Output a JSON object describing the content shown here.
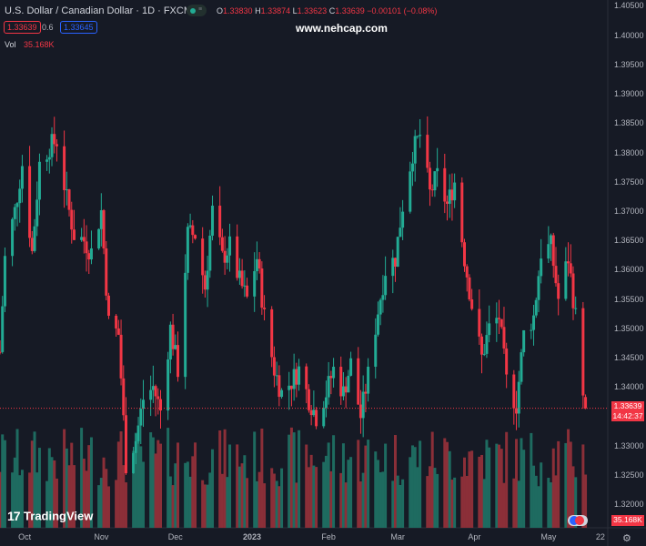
{
  "header": {
    "symbol": "U.S. Dollar / Canadian Dollar · 1D · FXCM",
    "open_label": "O",
    "open": "1.33830",
    "high_label": "H",
    "high": "1.33874",
    "low_label": "L",
    "low": "1.33623",
    "close_label": "C",
    "close": "1.33639",
    "change": "−0.00101 (−0.08%)",
    "sell_price": "1.33639",
    "spread": "0.6",
    "buy_price": "1.33645",
    "vol_label": "Vol",
    "vol_value": "35.168K",
    "watermark": "www.nehcap.com"
  },
  "price_axis": {
    "ticks": [
      "1.40500",
      "1.40000",
      "1.39500",
      "1.39000",
      "1.38500",
      "1.38000",
      "1.37500",
      "1.37000",
      "1.36500",
      "1.36000",
      "1.35500",
      "1.35000",
      "1.34500",
      "1.34000",
      "1.33500",
      "1.33000",
      "1.32500",
      "1.32000"
    ],
    "last_price": "1.33639",
    "countdown": "14:42:37",
    "volume_badge": "35.168K"
  },
  "time_axis": {
    "labels": [
      "Oct",
      "Nov",
      "Dec",
      "2023",
      "Feb",
      "Mar",
      "Apr",
      "May",
      "22"
    ]
  },
  "branding": {
    "logo_text": "TradingView"
  },
  "colors": {
    "up": "#22ab94",
    "down": "#f23645",
    "background": "#161a25",
    "volume_up": "#1e6b60",
    "volume_down": "#8b2f38"
  },
  "chart_data": {
    "type": "candlestick",
    "title": "U.S. Dollar / Canadian Dollar · 1D · FXCM",
    "ylim": [
      1.316,
      1.406
    ],
    "x_range": [
      "2022-09-21",
      "2023-05-25"
    ],
    "y_ticks": [
      1.405,
      1.4,
      1.395,
      1.39,
      1.385,
      1.38,
      1.375,
      1.37,
      1.365,
      1.36,
      1.355,
      1.35,
      1.345,
      1.34,
      1.335,
      1.33,
      1.325,
      1.32
    ],
    "last_bar": {
      "open": 1.3383,
      "high": 1.33874,
      "low": 1.33623,
      "close": 1.33639,
      "volume": "35.168K"
    },
    "series": [
      {
        "name": "Vol",
        "type": "volume"
      }
    ],
    "close_path": [
      [
        "2022-09-21",
        1.346
      ],
      [
        "2022-09-23",
        1.362
      ],
      [
        "2022-09-27",
        1.37
      ],
      [
        "2022-09-30",
        1.378
      ],
      [
        "2022-10-04",
        1.363
      ],
      [
        "2022-10-07",
        1.378
      ],
      [
        "2022-10-11",
        1.381
      ],
      [
        "2022-10-14",
        1.382
      ],
      [
        "2022-10-18",
        1.372
      ],
      [
        "2022-10-21",
        1.366
      ],
      [
        "2022-10-25",
        1.365
      ],
      [
        "2022-10-28",
        1.363
      ],
      [
        "2022-11-01",
        1.37
      ],
      [
        "2022-11-04",
        1.351
      ],
      [
        "2022-11-08",
        1.349
      ],
      [
        "2022-11-11",
        1.327
      ],
      [
        "2022-11-15",
        1.331
      ],
      [
        "2022-11-18",
        1.338
      ],
      [
        "2022-11-22",
        1.34
      ],
      [
        "2022-11-25",
        1.336
      ],
      [
        "2022-11-29",
        1.35
      ],
      [
        "2022-12-02",
        1.343
      ],
      [
        "2022-12-06",
        1.366
      ],
      [
        "2022-12-09",
        1.366
      ],
      [
        "2022-12-13",
        1.357
      ],
      [
        "2022-12-16",
        1.37
      ],
      [
        "2022-12-20",
        1.362
      ],
      [
        "2022-12-23",
        1.364
      ],
      [
        "2022-12-27",
        1.358
      ],
      [
        "2022-12-30",
        1.355
      ],
      [
        "2023-01-03",
        1.362
      ],
      [
        "2023-01-06",
        1.352
      ],
      [
        "2023-01-10",
        1.343
      ],
      [
        "2023-01-13",
        1.339
      ],
      [
        "2023-01-17",
        1.341
      ],
      [
        "2023-01-20",
        1.343
      ],
      [
        "2023-01-24",
        1.338
      ],
      [
        "2023-01-27",
        1.335
      ],
      [
        "2023-01-31",
        1.339
      ],
      [
        "2023-02-03",
        1.343
      ],
      [
        "2023-02-07",
        1.339
      ],
      [
        "2023-02-10",
        1.344
      ],
      [
        "2023-02-14",
        1.335
      ],
      [
        "2023-02-17",
        1.342
      ],
      [
        "2023-02-21",
        1.353
      ],
      [
        "2023-02-24",
        1.36
      ],
      [
        "2023-02-28",
        1.362
      ],
      [
        "2023-03-03",
        1.371
      ],
      [
        "2023-03-07",
        1.38
      ],
      [
        "2023-03-10",
        1.383
      ],
      [
        "2023-03-14",
        1.373
      ],
      [
        "2023-03-17",
        1.376
      ],
      [
        "2023-03-21",
        1.371
      ],
      [
        "2023-03-24",
        1.375
      ],
      [
        "2023-03-28",
        1.362
      ],
      [
        "2023-03-31",
        1.354
      ],
      [
        "2023-04-04",
        1.345
      ],
      [
        "2023-04-07",
        1.35
      ],
      [
        "2023-04-11",
        1.352
      ],
      [
        "2023-04-14",
        1.341
      ],
      [
        "2023-04-18",
        1.337
      ],
      [
        "2023-04-21",
        1.349
      ],
      [
        "2023-04-25",
        1.352
      ],
      [
        "2023-04-28",
        1.363
      ],
      [
        "2023-05-02",
        1.364
      ],
      [
        "2023-05-05",
        1.355
      ],
      [
        "2023-05-09",
        1.362
      ],
      [
        "2023-05-12",
        1.352
      ],
      [
        "2023-05-15",
        1.34
      ],
      [
        "2023-05-16",
        1.3364
      ]
    ]
  }
}
